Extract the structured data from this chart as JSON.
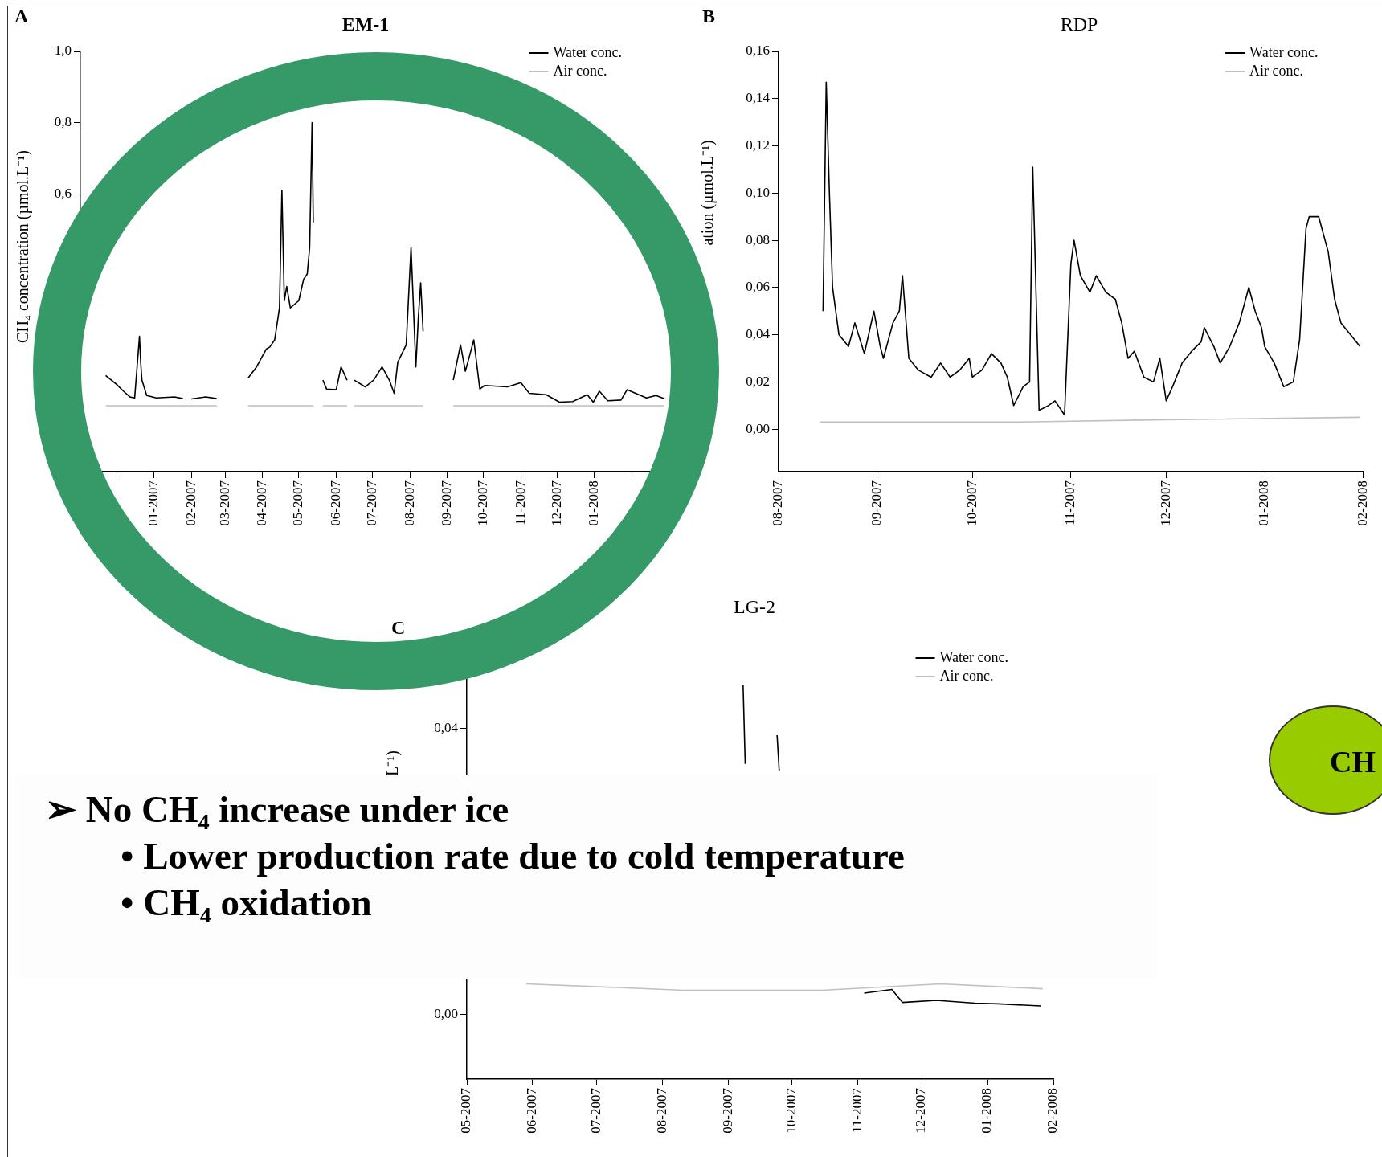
{
  "chart_data": [
    {
      "type": "line",
      "title": "EM-1",
      "ylabel": "CH₄ concentration (µmol.L⁻¹)",
      "annotations": [
        "A"
      ],
      "legend": "top right",
      "marker": "none",
      "xlim": [
        "2006-11",
        "2008-03"
      ],
      "xticks": [
        {
          "value": "2006-11",
          "label": null
        },
        {
          "value": "2006-12",
          "label": null
        },
        {
          "value": "2007-01",
          "label": "01-2007"
        },
        {
          "value": "2007-02",
          "label": "02-2007"
        },
        {
          "value": "2007-03",
          "label": "03-2007"
        },
        {
          "value": "2007-04",
          "label": "04-2007"
        },
        {
          "value": "2007-05",
          "label": "05-2007"
        },
        {
          "value": "2007-06",
          "label": "06-2007"
        },
        {
          "value": "2007-07",
          "label": "07-2007"
        },
        {
          "value": "2007-08",
          "label": "08-2007"
        },
        {
          "value": "2007-09",
          "label": "09-2007"
        },
        {
          "value": "2007-10",
          "label": "10-2007"
        },
        {
          "value": "2007-11",
          "label": "11-2007"
        },
        {
          "value": "2007-12",
          "label": "12-2007"
        },
        {
          "value": "2008-01",
          "label": "01-2008"
        },
        {
          "value": "2008-02",
          "label": null
        },
        {
          "value": "2008-03",
          "label": null
        }
      ],
      "ylim": [
        -0.18,
        1.0
      ],
      "yticks": [
        {
          "value": 0,
          "label": null
        },
        {
          "value": 0.2,
          "label": null
        },
        {
          "value": 0.4,
          "label": null
        },
        {
          "value": 0.6,
          "label": "0,6"
        },
        {
          "value": 0.8,
          "label": "0,8"
        },
        {
          "value": 1.0,
          "label": "1,0"
        }
      ],
      "series": [
        {
          "name": "Water conc.",
          "color": "#000000",
          "x": [
            "2006-11-22",
            "2006-12-01",
            "2006-12-07",
            "2006-12-12",
            "2006-12-16",
            "2006-12-20",
            "2006-12-21",
            "2006-12-22",
            "2006-12-26",
            "2007-01-03",
            "2007-01-18",
            "2007-01-25",
            "2007-01-28",
            "2007-02-01",
            "2007-02-13",
            "2007-02-22",
            "2007-03-08",
            "2007-03-20",
            "2007-03-27",
            "2007-04-04",
            "2007-04-07",
            "2007-04-11",
            "2007-04-15",
            "2007-04-17",
            "2007-04-19",
            "2007-04-21",
            "2007-04-24",
            "2007-05-01",
            "2007-05-05",
            "2007-05-08",
            "2007-05-10",
            "2007-05-12",
            "2007-05-13",
            "2007-05-17",
            "2007-05-21",
            "2007-05-24",
            "2007-06-01",
            "2007-06-05",
            "2007-06-10",
            "2007-06-13",
            "2007-06-16",
            "2007-06-25",
            "2007-07-02",
            "2007-07-09",
            "2007-07-15",
            "2007-07-19",
            "2007-07-22",
            "2007-07-29",
            "2007-08-02",
            "2007-08-06",
            "2007-08-08",
            "2007-08-10",
            "2007-08-12",
            "2007-08-25",
            "2007-09-06",
            "2007-09-12",
            "2007-09-16",
            "2007-09-19",
            "2007-09-23",
            "2007-09-28",
            "2007-10-02",
            "2007-10-21",
            "2007-11-01",
            "2007-11-08",
            "2007-11-22",
            "2007-12-03",
            "2007-12-14",
            "2007-12-26",
            "2007-12-31",
            "2008-01-05",
            "2008-01-12",
            "2008-01-23",
            "2008-01-28",
            "2008-02-06",
            "2008-02-13",
            "2008-02-21",
            "2008-02-28"
          ],
          "values": [
            0.09,
            0.065,
            0.045,
            0.03,
            0.027,
            0.2,
            0.127,
            0.077,
            0.034,
            0.027,
            0.03,
            0.025,
            null,
            0.024,
            0.03,
            0.025,
            null,
            0.083,
            0.114,
            0.164,
            0.17,
            0.19,
            0.28,
            0.61,
            0.3,
            0.34,
            0.28,
            0.3,
            0.36,
            0.375,
            0.45,
            0.8,
            0.52,
            null,
            0.077,
            0.052,
            0.05,
            0.114,
            0.077,
            null,
            0.077,
            0.058,
            0.077,
            0.114,
            0.077,
            0.04,
            0.127,
            0.176,
            0.45,
            0.114,
            0.25,
            0.35,
            0.214,
            null,
            0.077,
            0.176,
            0.102,
            0.139,
            0.19,
            0.052,
            0.062,
            0.058,
            0.07,
            0.04,
            0.036,
            0.015,
            0.017,
            0.036,
            0.015,
            0.046,
            0.019,
            0.021,
            0.05,
            0.037,
            0.027,
            0.034,
            0.025
          ]
        },
        {
          "name": "Air conc.",
          "color": "#c0c0c0",
          "x": [
            "2006-11-22",
            "2007-02-22",
            "2007-03-08",
            "2007-03-20",
            "2007-05-13",
            "2007-05-17",
            "2007-05-21",
            "2007-06-10",
            "2007-06-13",
            "2007-06-16",
            "2007-08-12",
            "2007-08-25",
            "2007-09-06",
            "2008-02-28"
          ],
          "values": [
            0.005,
            0.005,
            null,
            0.005,
            0.005,
            null,
            0.005,
            0.005,
            null,
            0.005,
            0.005,
            null,
            0.005,
            0.005
          ]
        }
      ]
    },
    {
      "type": "line",
      "title": "RDP",
      "ylabel": "ation (µmol.L⁻¹)",
      "annotations": [
        "B"
      ],
      "legend": "top right",
      "marker": "none",
      "xlim": [
        "2007-08",
        "2008-02"
      ],
      "xticks": [
        {
          "value": "2007-08",
          "label": "08-2007"
        },
        {
          "value": "2007-09",
          "label": "09-2007"
        },
        {
          "value": "2007-10",
          "label": "10-2007"
        },
        {
          "value": "2007-11",
          "label": "11-2007"
        },
        {
          "value": "2007-12",
          "label": "12-2007"
        },
        {
          "value": "2008-01",
          "label": "01-2008"
        },
        {
          "value": "2008-02",
          "label": "02-2008"
        }
      ],
      "ylim": [
        -0.018,
        0.16
      ],
      "yticks": [
        {
          "value": 0,
          "label": "0,00"
        },
        {
          "value": 0.02,
          "label": "0,02"
        },
        {
          "value": 0.04,
          "label": "0,04"
        },
        {
          "value": 0.06,
          "label": "0,06"
        },
        {
          "value": 0.08,
          "label": "0,08"
        },
        {
          "value": 0.1,
          "label": "0,10"
        },
        {
          "value": 0.12,
          "label": "0,12"
        },
        {
          "value": 0.14,
          "label": "0,14"
        },
        {
          "value": 0.16,
          "label": "0,16"
        }
      ],
      "series": [
        {
          "name": "Water conc.",
          "color": "#000000",
          "x": [
            "2007-08-15",
            "2007-08-16",
            "2007-08-17",
            "2007-08-18",
            "2007-08-20",
            "2007-08-23",
            "2007-08-25",
            "2007-08-28",
            "2007-08-31",
            "2007-09-02",
            "2007-09-03",
            "2007-09-06",
            "2007-09-08",
            "2007-09-09",
            "2007-09-11",
            "2007-09-14",
            "2007-09-18",
            "2007-09-21",
            "2007-09-24",
            "2007-09-27",
            "2007-09-30",
            "2007-10-01",
            "2007-10-04",
            "2007-10-07",
            "2007-10-10",
            "2007-10-12",
            "2007-10-14",
            "2007-10-17",
            "2007-10-19",
            "2007-10-20",
            "2007-10-22",
            "2007-10-25",
            "2007-10-27",
            "2007-10-30",
            "2007-11-01",
            "2007-11-02",
            "2007-11-04",
            "2007-11-07",
            "2007-11-09",
            "2007-11-12",
            "2007-11-15",
            "2007-11-17",
            "2007-11-19",
            "2007-11-21",
            "2007-11-24",
            "2007-11-27",
            "2007-11-29",
            "2007-12-01",
            "2007-12-03",
            "2007-12-06",
            "2007-12-09",
            "2007-12-12",
            "2007-12-13",
            "2007-12-16",
            "2007-12-18",
            "2007-12-21",
            "2007-12-24",
            "2007-12-27",
            "2007-12-29",
            "2007-12-31",
            "2008-01-01",
            "2008-01-04",
            "2008-01-07",
            "2008-01-10",
            "2008-01-12",
            "2008-01-14",
            "2008-01-15",
            "2008-01-18",
            "2008-01-21",
            "2008-01-23",
            "2008-01-25",
            "2008-01-28",
            "2008-01-31"
          ],
          "values": [
            0.05,
            0.147,
            0.1,
            0.06,
            0.04,
            0.035,
            0.045,
            0.032,
            0.05,
            0.035,
            0.03,
            0.045,
            0.05,
            0.065,
            0.03,
            0.025,
            0.022,
            0.028,
            0.022,
            0.025,
            0.03,
            0.022,
            0.025,
            0.032,
            0.028,
            0.022,
            0.01,
            0.018,
            0.02,
            0.111,
            0.008,
            0.01,
            0.012,
            0.006,
            0.07,
            0.08,
            0.065,
            0.058,
            0.065,
            0.058,
            0.055,
            0.045,
            0.03,
            0.033,
            0.022,
            0.02,
            0.03,
            0.012,
            0.018,
            0.028,
            0.033,
            0.037,
            0.043,
            0.035,
            0.028,
            0.035,
            0.045,
            0.06,
            0.05,
            0.043,
            0.035,
            0.028,
            0.018,
            0.02,
            0.038,
            0.085,
            0.09,
            0.09,
            0.075,
            0.055,
            0.045,
            0.04,
            0.035
          ]
        },
        {
          "name": "Air conc.",
          "color": "#c0c0c0",
          "x": [
            "2007-08-14",
            "2007-10-15",
            "2007-12-01",
            "2008-01-31"
          ],
          "values": [
            0.003,
            0.003,
            0.004,
            0.005
          ]
        }
      ]
    },
    {
      "type": "line",
      "title": "LG-2",
      "ylabel": "L⁻¹)",
      "annotations": [
        "C"
      ],
      "legend": "top right",
      "marker": "none",
      "xlim": [
        "2007-05",
        "2008-02"
      ],
      "xticks": [
        {
          "value": "2007-05",
          "label": "05-2007"
        },
        {
          "value": "2007-06",
          "label": "06-2007"
        },
        {
          "value": "2007-07",
          "label": "07-2007"
        },
        {
          "value": "2007-08",
          "label": "08-2007"
        },
        {
          "value": "2007-09",
          "label": "09-2007"
        },
        {
          "value": "2007-10",
          "label": "10-2007"
        },
        {
          "value": "2007-11",
          "label": "11-2007"
        },
        {
          "value": "2007-12",
          "label": "12-2007"
        },
        {
          "value": "2008-01",
          "label": "01-2008"
        },
        {
          "value": "2008-02",
          "label": "02-2008"
        }
      ],
      "ylim": [
        -0.009,
        0.05
      ],
      "yticks": [
        {
          "value": 0,
          "label": "0,00"
        },
        {
          "value": 0.04,
          "label": "0,04"
        }
      ],
      "series": [
        {
          "name": "Water conc.",
          "color": "#000000",
          "x": [
            "2007-09-08",
            "2007-09-09",
            "2007-09-15",
            "2007-09-24",
            "2007-09-25",
            "2007-10-20",
            "2007-11-04",
            "2007-11-17",
            "2007-11-22",
            "2007-12-08",
            "2007-12-26",
            "2008-01-06",
            "2008-01-26"
          ],
          "values": [
            0.046,
            0.035,
            null,
            0.039,
            0.034,
            null,
            0.003,
            0.0035,
            0.0017,
            0.002,
            0.0016,
            0.0015,
            0.0012
          ]
        },
        {
          "name": "Air conc.",
          "color": "#c0c0c0",
          "x": [
            "2007-05-29",
            "2007-08-11",
            "2007-10-15",
            "2007-12-10",
            "2008-01-27"
          ],
          "values": [
            0.0043,
            0.0034,
            0.0034,
            0.0043,
            0.0036
          ]
        }
      ]
    },
    {
      "type": "other",
      "annotations": [
        "➢ No CH₄ increase under ice",
        "• Lower production rate due to cold temperature",
        "• CH₄ oxidation"
      ]
    },
    {
      "type": "other",
      "annotations": [
        "CH"
      ]
    }
  ]
}
